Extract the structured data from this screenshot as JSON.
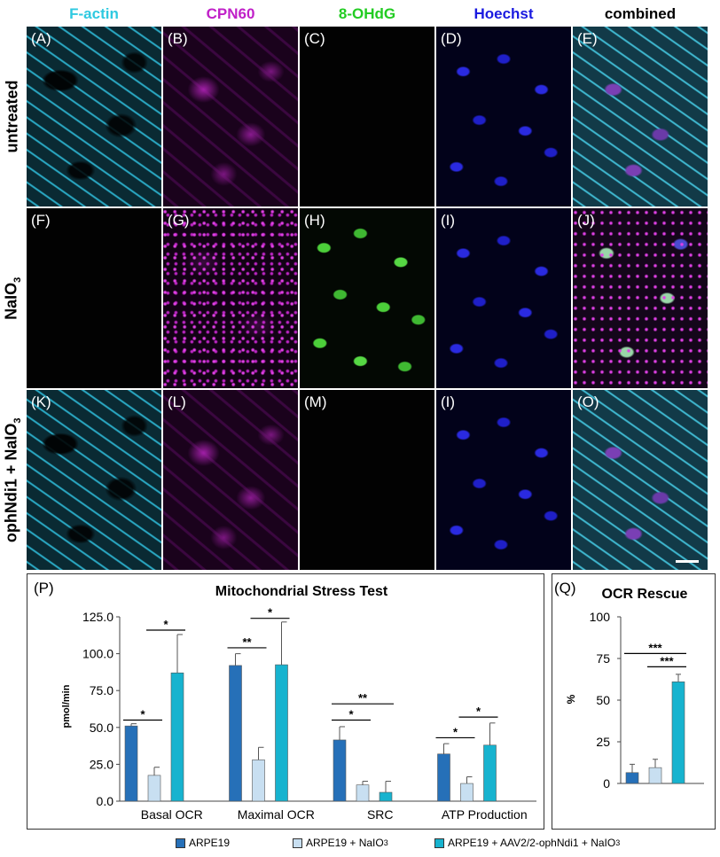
{
  "figure": {
    "columns": [
      {
        "label": "F-actin",
        "color": "#2ec9e0"
      },
      {
        "label": "CPN60",
        "color": "#c020c8"
      },
      {
        "label": "8-OHdG",
        "color": "#22cc22"
      },
      {
        "label": "Hoechst",
        "color": "#1a1ae0"
      },
      {
        "label": "combined",
        "color": "#000000"
      }
    ],
    "rows": [
      "untreated",
      "NaIO",
      "ophNdi1 + NaIO"
    ],
    "row_subscript": "3",
    "panels": [
      [
        "(A)",
        "(B)",
        "(C)",
        "(D)",
        "(E)"
      ],
      [
        "(F)",
        "(G)",
        "(H)",
        "(I)",
        "(J)"
      ],
      [
        "(K)",
        "(L)",
        "(M)",
        "(I)",
        "(O)"
      ]
    ]
  },
  "chart_data": [
    {
      "type": "bar",
      "panel_label": "(P)",
      "title": "Mitochondrial Stress Test",
      "ylabel": "pmol/min",
      "xlabel": "",
      "ylim": [
        0,
        125
      ],
      "yticks": [
        "0.0",
        "25.0",
        "50.0",
        "75.0",
        "100.0",
        "125.0"
      ],
      "categories": [
        "Basal OCR",
        "Maximal OCR",
        "SRC",
        "ATP Production"
      ],
      "series": [
        {
          "name": "ARPE19",
          "color": "#2670b8",
          "values": [
            51,
            92,
            41.5,
            32
          ],
          "errors": [
            1.5,
            8,
            9,
            7
          ]
        },
        {
          "name": "ARPE19 + NaIO3",
          "color": "#c8dff1",
          "values": [
            17.5,
            28,
            11,
            12
          ],
          "errors": [
            5.5,
            8.5,
            2.5,
            4.5
          ]
        },
        {
          "name": "ARPE19 + AAV2/2-ophNdi1 + NaIO3",
          "color": "#17b3cf",
          "values": [
            87,
            92.5,
            6,
            38
          ],
          "errors": [
            26,
            29,
            7.5,
            15
          ]
        }
      ],
      "significance": [
        {
          "group": 0,
          "from": 0,
          "to": 1,
          "label": "*",
          "y": 55
        },
        {
          "group": 0,
          "from": 1,
          "to": 2,
          "label": "*",
          "y": 116
        },
        {
          "group": 1,
          "from": 0,
          "to": 1,
          "label": "**",
          "y": 104
        },
        {
          "group": 1,
          "from": 1,
          "to": 2,
          "label": "*",
          "y": 124
        },
        {
          "group": 2,
          "from": 0,
          "to": 1,
          "label": "*",
          "y": 55
        },
        {
          "group": 2,
          "from": 0,
          "to": 2,
          "label": "**",
          "y": 66
        },
        {
          "group": 3,
          "from": 0,
          "to": 1,
          "label": "*",
          "y": 43
        },
        {
          "group": 3,
          "from": 1,
          "to": 2,
          "label": "*",
          "y": 57
        }
      ],
      "grid": false,
      "legend": "bottom"
    },
    {
      "type": "bar",
      "panel_label": "(Q)",
      "title": "OCR Rescue",
      "ylabel": "%",
      "xlabel": "",
      "ylim": [
        0,
        100
      ],
      "yticks": [
        "0",
        "25",
        "50",
        "75",
        "100"
      ],
      "categories": [
        "ARPE19",
        "ARPE19 + NaIO3",
        "ARPE19 + AAV2/2-ophNdi1 + NaIO3"
      ],
      "values": [
        6.5,
        9.5,
        61
      ],
      "errors": [
        5,
        5,
        4.5
      ],
      "colors": [
        "#2670b8",
        "#c8dff1",
        "#17b3cf"
      ],
      "significance": [
        {
          "from": 0,
          "to": 2,
          "label": "***",
          "y": 78
        },
        {
          "from": 1,
          "to": 2,
          "label": "***",
          "y": 70
        }
      ],
      "grid": false
    }
  ],
  "legend": {
    "items": [
      {
        "label": "ARPE19",
        "sub": "",
        "color": "#2670b8"
      },
      {
        "label": "ARPE19 + NaIO",
        "sub": "3",
        "color": "#c8dff1"
      },
      {
        "label": "ARPE19 + AAV2/2-ophNdi1 + NaIO",
        "sub": "3",
        "color": "#17b3cf"
      }
    ]
  }
}
